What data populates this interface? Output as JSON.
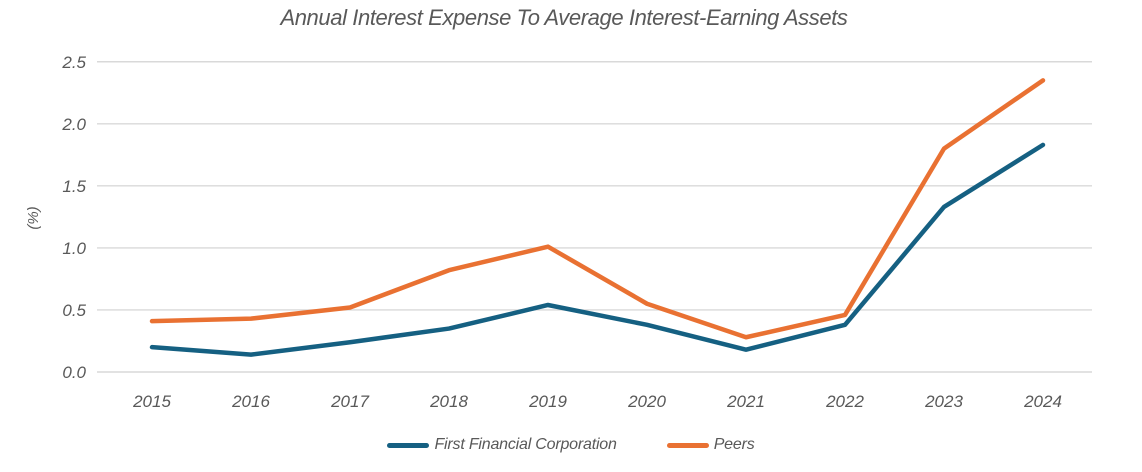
{
  "chart_data": {
    "type": "line",
    "title": "Annual Interest Expense To Average Interest-Earning Assets",
    "ylabel": "(%)",
    "xlabel": "",
    "categories": [
      "2015",
      "2016",
      "2017",
      "2018",
      "2019",
      "2020",
      "2021",
      "2022",
      "2023",
      "2024"
    ],
    "yticks": [
      "0.0",
      "0.5",
      "1.0",
      "1.5",
      "2.0",
      "2.5"
    ],
    "ylim": [
      0.0,
      2.5
    ],
    "ytick_step": 0.5,
    "grid": "horizontal",
    "legend_position": "bottom",
    "series": [
      {
        "name": "First Financial Corporation",
        "color": "#156082",
        "values": [
          0.2,
          0.14,
          0.24,
          0.35,
          0.54,
          0.38,
          0.18,
          0.38,
          1.33,
          1.83
        ]
      },
      {
        "name": "Peers",
        "color": "#E97132",
        "values": [
          0.41,
          0.43,
          0.52,
          0.82,
          1.01,
          0.55,
          0.28,
          0.46,
          1.8,
          2.35
        ]
      }
    ],
    "colors": {
      "text": "#595959",
      "gridline": "#D9D9D9",
      "background": "#FFFFFF"
    }
  }
}
